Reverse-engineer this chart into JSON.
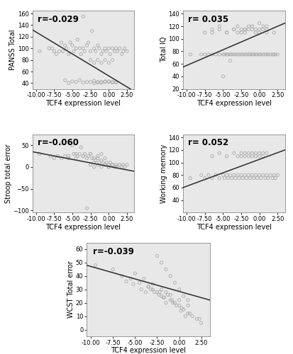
{
  "panels": [
    {
      "r_label": "r=-0.029",
      "xlabel": "TCF4 expression level",
      "ylabel": "PANSS Total",
      "xlim": [
        -10.5,
        3.5
      ],
      "ylim": [
        30,
        165
      ],
      "xticks": [
        -10.0,
        -7.5,
        -5.0,
        -2.5,
        0.0,
        2.5
      ],
      "yticks": [
        40,
        60,
        80,
        100,
        120,
        140,
        160
      ],
      "fit_x": [
        -10.5,
        3.5
      ],
      "fit_y": [
        132,
        26
      ],
      "scatter_x": [
        -9.5,
        -8.2,
        -7.8,
        -7.5,
        -7.2,
        -6.8,
        -6.5,
        -6.3,
        -6.0,
        -5.8,
        -5.5,
        -5.3,
        -5.0,
        -4.8,
        -4.5,
        -4.3,
        -4.0,
        -3.8,
        -3.5,
        -3.3,
        -3.0,
        -2.8,
        -2.5,
        -2.3,
        -2.0,
        -1.8,
        -1.5,
        -1.3,
        -1.0,
        -0.8,
        -0.5,
        -0.3,
        0.0,
        0.2,
        0.5,
        0.8,
        1.0,
        1.2,
        1.5,
        1.8,
        2.0,
        2.2,
        2.5,
        -5.5,
        -4.0,
        -3.0,
        -2.5,
        -2.0,
        -1.5,
        -1.0,
        -0.5,
        0.0,
        0.5,
        1.0,
        -6.0,
        -5.0,
        -4.5,
        -3.5,
        -2.0,
        -1.5,
        -1.0,
        -0.5,
        0.0,
        0.5,
        1.0,
        -3.5,
        -2.5,
        -2.0,
        -1.5,
        -1.0,
        -0.5,
        0.0,
        0.5
      ],
      "scatter_y": [
        95,
        100,
        100,
        95,
        90,
        95,
        110,
        95,
        105,
        100,
        90,
        110,
        105,
        95,
        100,
        115,
        100,
        90,
        100,
        95,
        105,
        110,
        95,
        130,
        100,
        95,
        105,
        100,
        90,
        95,
        100,
        95,
        100,
        90,
        100,
        95,
        100,
        95,
        100,
        90,
        95,
        100,
        95,
        40,
        45,
        42,
        42,
        40,
        41,
        42,
        43,
        42,
        41,
        42,
        45,
        43,
        42,
        41,
        44,
        42,
        41,
        42,
        43,
        42,
        41,
        155,
        80,
        75,
        80,
        75,
        80,
        75,
        80
      ]
    },
    {
      "r_label": "r= 0.035",
      "xlabel": "TCF4 expression level",
      "ylabel": "Total IQ",
      "xlim": [
        -10.5,
        3.5
      ],
      "ylim": [
        20,
        145
      ],
      "xticks": [
        -10.0,
        -7.5,
        -5.0,
        -2.5,
        0.0,
        2.5
      ],
      "yticks": [
        20,
        40,
        60,
        80,
        100,
        120,
        140
      ],
      "fit_x": [
        -10.5,
        3.5
      ],
      "fit_y": [
        55,
        125
      ],
      "scatter_x": [
        -9.5,
        -8.0,
        -7.5,
        -7.0,
        -6.5,
        -6.0,
        -5.5,
        -5.0,
        -4.8,
        -4.5,
        -4.3,
        -4.0,
        -3.8,
        -3.5,
        -3.3,
        -3.0,
        -2.8,
        -2.5,
        -2.3,
        -2.0,
        -1.8,
        -1.5,
        -1.3,
        -1.0,
        -0.8,
        -0.5,
        -0.3,
        0.0,
        0.2,
        0.5,
        0.8,
        1.0,
        1.2,
        1.5,
        1.8,
        2.0,
        2.2,
        2.5,
        -6.5,
        -5.5,
        -4.5,
        -3.5,
        -3.0,
        -2.5,
        -2.0,
        -1.5,
        -1.0,
        -0.5,
        0.0,
        0.5,
        1.0,
        -7.5,
        -6.5,
        -5.5,
        -4.5,
        -3.5,
        -2.5,
        -2.0,
        -1.5,
        -1.0,
        -0.5,
        0.0,
        0.5,
        1.0,
        -5.0,
        -4.0,
        -3.0,
        -2.0,
        -1.0,
        0.0,
        1.0,
        2.0
      ],
      "scatter_y": [
        75,
        75,
        75,
        75,
        75,
        75,
        75,
        75,
        75,
        75,
        75,
        75,
        75,
        75,
        75,
        75,
        75,
        75,
        75,
        75,
        75,
        75,
        75,
        75,
        75,
        75,
        75,
        75,
        75,
        75,
        75,
        75,
        75,
        75,
        75,
        75,
        75,
        75,
        110,
        115,
        110,
        115,
        120,
        115,
        110,
        115,
        120,
        115,
        110,
        115,
        120,
        110,
        115,
        120,
        110,
        115,
        110,
        115,
        120,
        115,
        110,
        115,
        120,
        110,
        40,
        65,
        110,
        115,
        120,
        125,
        115,
        110
      ]
    },
    {
      "r_label": "r=-0.060",
      "xlabel": "TCF4 expression level",
      "ylabel": "Stroop total error",
      "xlim": [
        -10.5,
        3.5
      ],
      "ylim": [
        -105,
        75
      ],
      "xticks": [
        -10.0,
        -7.5,
        -5.0,
        -2.5,
        0.0,
        2.5
      ],
      "yticks": [
        -100,
        -50,
        0,
        50
      ],
      "fit_x": [
        -10.5,
        3.5
      ],
      "fit_y": [
        35,
        -10
      ],
      "scatter_x": [
        -9.5,
        -8.0,
        -7.5,
        -7.0,
        -6.5,
        -6.0,
        -5.5,
        -5.0,
        -4.8,
        -4.5,
        -4.3,
        -4.0,
        -3.8,
        -3.5,
        -3.3,
        -3.0,
        -2.8,
        -2.5,
        -2.3,
        -2.0,
        -1.8,
        -1.5,
        -1.3,
        -1.0,
        -0.8,
        -0.5,
        -0.3,
        0.0,
        0.2,
        0.5,
        0.8,
        1.0,
        1.2,
        1.5,
        1.8,
        2.0,
        2.2,
        2.5,
        -6.5,
        -5.5,
        -4.5,
        -3.5,
        -2.5,
        -2.0,
        -1.5,
        -1.0,
        -0.5,
        0.0,
        0.5,
        1.0,
        -3.0,
        -2.5,
        -2.0,
        -1.5,
        -1.0,
        -0.5,
        0.0,
        0.5
      ],
      "scatter_y": [
        30,
        25,
        20,
        25,
        20,
        25,
        20,
        50,
        30,
        20,
        25,
        30,
        45,
        25,
        30,
        20,
        25,
        30,
        20,
        10,
        15,
        20,
        10,
        15,
        10,
        5,
        10,
        5,
        10,
        5,
        0,
        5,
        0,
        5,
        0,
        5,
        0,
        5,
        55,
        25,
        30,
        25,
        30,
        20,
        25,
        30,
        20,
        0,
        5,
        0,
        -95,
        5,
        0,
        5,
        0,
        5,
        0,
        5
      ]
    },
    {
      "r_label": "r= 0.052",
      "xlabel": "TCF4 expression level",
      "ylabel": "Working memory",
      "xlim": [
        -10.5,
        3.5
      ],
      "ylim": [
        20,
        145
      ],
      "xticks": [
        -10.0,
        -7.5,
        -5.0,
        -2.5,
        0.0,
        2.5
      ],
      "yticks": [
        40,
        60,
        80,
        100,
        120,
        140
      ],
      "fit_x": [
        -10.5,
        3.5
      ],
      "fit_y": [
        60,
        120
      ],
      "scatter_x": [
        -9.5,
        -8.0,
        -7.5,
        -7.0,
        -6.5,
        -6.0,
        -5.5,
        -5.0,
        -4.8,
        -4.5,
        -4.3,
        -4.0,
        -3.8,
        -3.5,
        -3.3,
        -3.0,
        -2.8,
        -2.5,
        -2.3,
        -2.0,
        -1.8,
        -1.5,
        -1.3,
        -1.0,
        -0.8,
        -0.5,
        -0.3,
        0.0,
        0.2,
        0.5,
        0.8,
        1.0,
        1.2,
        1.5,
        1.8,
        2.0,
        2.2,
        2.5,
        -6.5,
        -5.5,
        -4.5,
        -3.5,
        -2.5,
        -2.0,
        -1.5,
        -1.0,
        -0.5,
        0.0,
        0.5,
        1.0,
        -3.0,
        -2.5,
        -2.0,
        -1.5,
        -1.0,
        -0.5,
        0.0,
        0.5
      ],
      "scatter_y": [
        75,
        80,
        75,
        80,
        75,
        80,
        75,
        80,
        75,
        80,
        75,
        80,
        75,
        80,
        75,
        80,
        75,
        80,
        75,
        80,
        75,
        80,
        75,
        80,
        75,
        80,
        75,
        80,
        75,
        80,
        75,
        80,
        75,
        80,
        75,
        80,
        75,
        80,
        110,
        115,
        110,
        115,
        110,
        115,
        110,
        115,
        110,
        115,
        110,
        115,
        110,
        115,
        110,
        115,
        110,
        115,
        110,
        115
      ]
    },
    {
      "r_label": "r=-0.039",
      "xlabel": "TCF4 expression level",
      "ylabel": "WCST Total error",
      "xlim": [
        -10.5,
        3.5
      ],
      "ylim": [
        -5,
        65
      ],
      "xticks": [
        -10.0,
        -7.5,
        -5.0,
        -2.5,
        0.0,
        2.5
      ],
      "yticks": [
        0,
        10,
        20,
        30,
        40,
        50,
        60
      ],
      "fit_x": [
        -10.5,
        3.5
      ],
      "fit_y": [
        48,
        22
      ],
      "scatter_x": [
        -9.5,
        -7.5,
        -6.5,
        -5.5,
        -4.5,
        -3.5,
        -3.0,
        -2.5,
        -2.0,
        -1.5,
        -1.0,
        -0.5,
        0.0,
        0.5,
        1.0,
        1.5,
        2.0,
        2.5,
        -2.5,
        -2.0,
        -1.5,
        -1.0,
        -0.5,
        0.0,
        0.5,
        1.0,
        -5.0,
        -4.0,
        -3.0,
        -2.0,
        -1.0,
        0.0,
        1.0,
        -2.2,
        -1.8,
        -1.3,
        -0.8,
        -0.3,
        0.2,
        0.7,
        -3.5,
        -3.2,
        -2.8,
        -2.3,
        -1.7,
        -0.7,
        0.3,
        1.2,
        -6.0,
        -5.2,
        -4.3,
        -3.8,
        -1.5,
        2.3
      ],
      "scatter_y": [
        48,
        45,
        40,
        38,
        35,
        32,
        30,
        28,
        25,
        28,
        22,
        20,
        18,
        15,
        12,
        10,
        8,
        5,
        55,
        50,
        45,
        40,
        35,
        30,
        25,
        22,
        42,
        38,
        34,
        30,
        26,
        22,
        18,
        28,
        24,
        26,
        22,
        18,
        14,
        10,
        32,
        30,
        28,
        26,
        24,
        20,
        16,
        12,
        36,
        34,
        30,
        28,
        20,
        8
      ]
    }
  ],
  "bg_color": "#e8e8e8",
  "plot_bg_color": "#e8e8e8",
  "scatter_color": "#aaaaaa",
  "line_color": "#2c2c2c",
  "tick_label_fontsize": 6.0,
  "axis_label_fontsize": 7.0,
  "r_label_fontsize": 8.5
}
